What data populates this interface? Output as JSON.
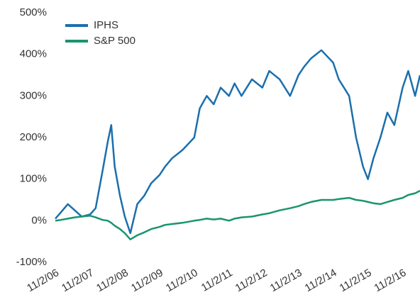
{
  "chart_data": {
    "type": "line",
    "x": [
      2006.84,
      2007.0,
      2007.2,
      2007.4,
      2007.6,
      2007.84,
      2008.0,
      2008.2,
      2008.35,
      2008.45,
      2008.55,
      2008.7,
      2008.84,
      2009.0,
      2009.2,
      2009.4,
      2009.6,
      2009.84,
      2010.0,
      2010.2,
      2010.5,
      2010.84,
      2011.0,
      2011.2,
      2011.4,
      2011.6,
      2011.84,
      2012.0,
      2012.2,
      2012.5,
      2012.8,
      2013.0,
      2013.3,
      2013.6,
      2013.84,
      2014.0,
      2014.2,
      2014.5,
      2014.84,
      2015.0,
      2015.3,
      2015.5,
      2015.7,
      2015.84,
      2016.0,
      2016.2,
      2016.4,
      2016.6,
      2016.84,
      2017.0,
      2017.2,
      2017.34
    ],
    "series": [
      {
        "name": "IPHS",
        "color": "#1b6fad",
        "values": [
          5,
          20,
          40,
          25,
          10,
          15,
          30,
          120,
          190,
          230,
          130,
          60,
          10,
          -30,
          40,
          60,
          90,
          110,
          130,
          150,
          170,
          200,
          270,
          300,
          280,
          320,
          300,
          330,
          300,
          340,
          320,
          360,
          340,
          300,
          350,
          370,
          390,
          410,
          380,
          340,
          300,
          200,
          130,
          100,
          150,
          200,
          260,
          230,
          320,
          360,
          300,
          350
        ]
      },
      {
        "name": "S&P 500",
        "color": "#1a9470",
        "values": [
          0,
          2,
          5,
          8,
          10,
          12,
          8,
          2,
          0,
          -5,
          -12,
          -20,
          -30,
          -45,
          -35,
          -28,
          -20,
          -15,
          -10,
          -8,
          -5,
          0,
          2,
          5,
          3,
          5,
          0,
          5,
          8,
          10,
          15,
          18,
          25,
          30,
          35,
          40,
          45,
          50,
          50,
          52,
          55,
          50,
          48,
          45,
          42,
          40,
          45,
          50,
          55,
          62,
          66,
          72
        ]
      }
    ],
    "xlim": [
      2006.84,
      2017.34
    ],
    "xticks": [
      {
        "value": 2006.84,
        "label": "11/2/06"
      },
      {
        "value": 2007.84,
        "label": "11/2/07"
      },
      {
        "value": 2008.84,
        "label": "11/2/08"
      },
      {
        "value": 2009.84,
        "label": "11/2/09"
      },
      {
        "value": 2010.84,
        "label": "11/2/10"
      },
      {
        "value": 2011.84,
        "label": "11/2/11"
      },
      {
        "value": 2012.84,
        "label": "11/2/12"
      },
      {
        "value": 2013.84,
        "label": "11/2/13"
      },
      {
        "value": 2014.84,
        "label": "11/2/14"
      },
      {
        "value": 2015.84,
        "label": "11/2/15"
      },
      {
        "value": 2016.84,
        "label": "11/2/16"
      }
    ],
    "ylim": [
      -100,
      500
    ],
    "yticks": [
      {
        "value": -100,
        "label": "-100%"
      },
      {
        "value": 0,
        "label": "0%"
      },
      {
        "value": 100,
        "label": "100%"
      },
      {
        "value": 200,
        "label": "200%"
      },
      {
        "value": 300,
        "label": "300%"
      },
      {
        "value": 400,
        "label": "400%"
      },
      {
        "value": 500,
        "label": "500%"
      }
    ],
    "grid": false,
    "legend": "top-left"
  }
}
